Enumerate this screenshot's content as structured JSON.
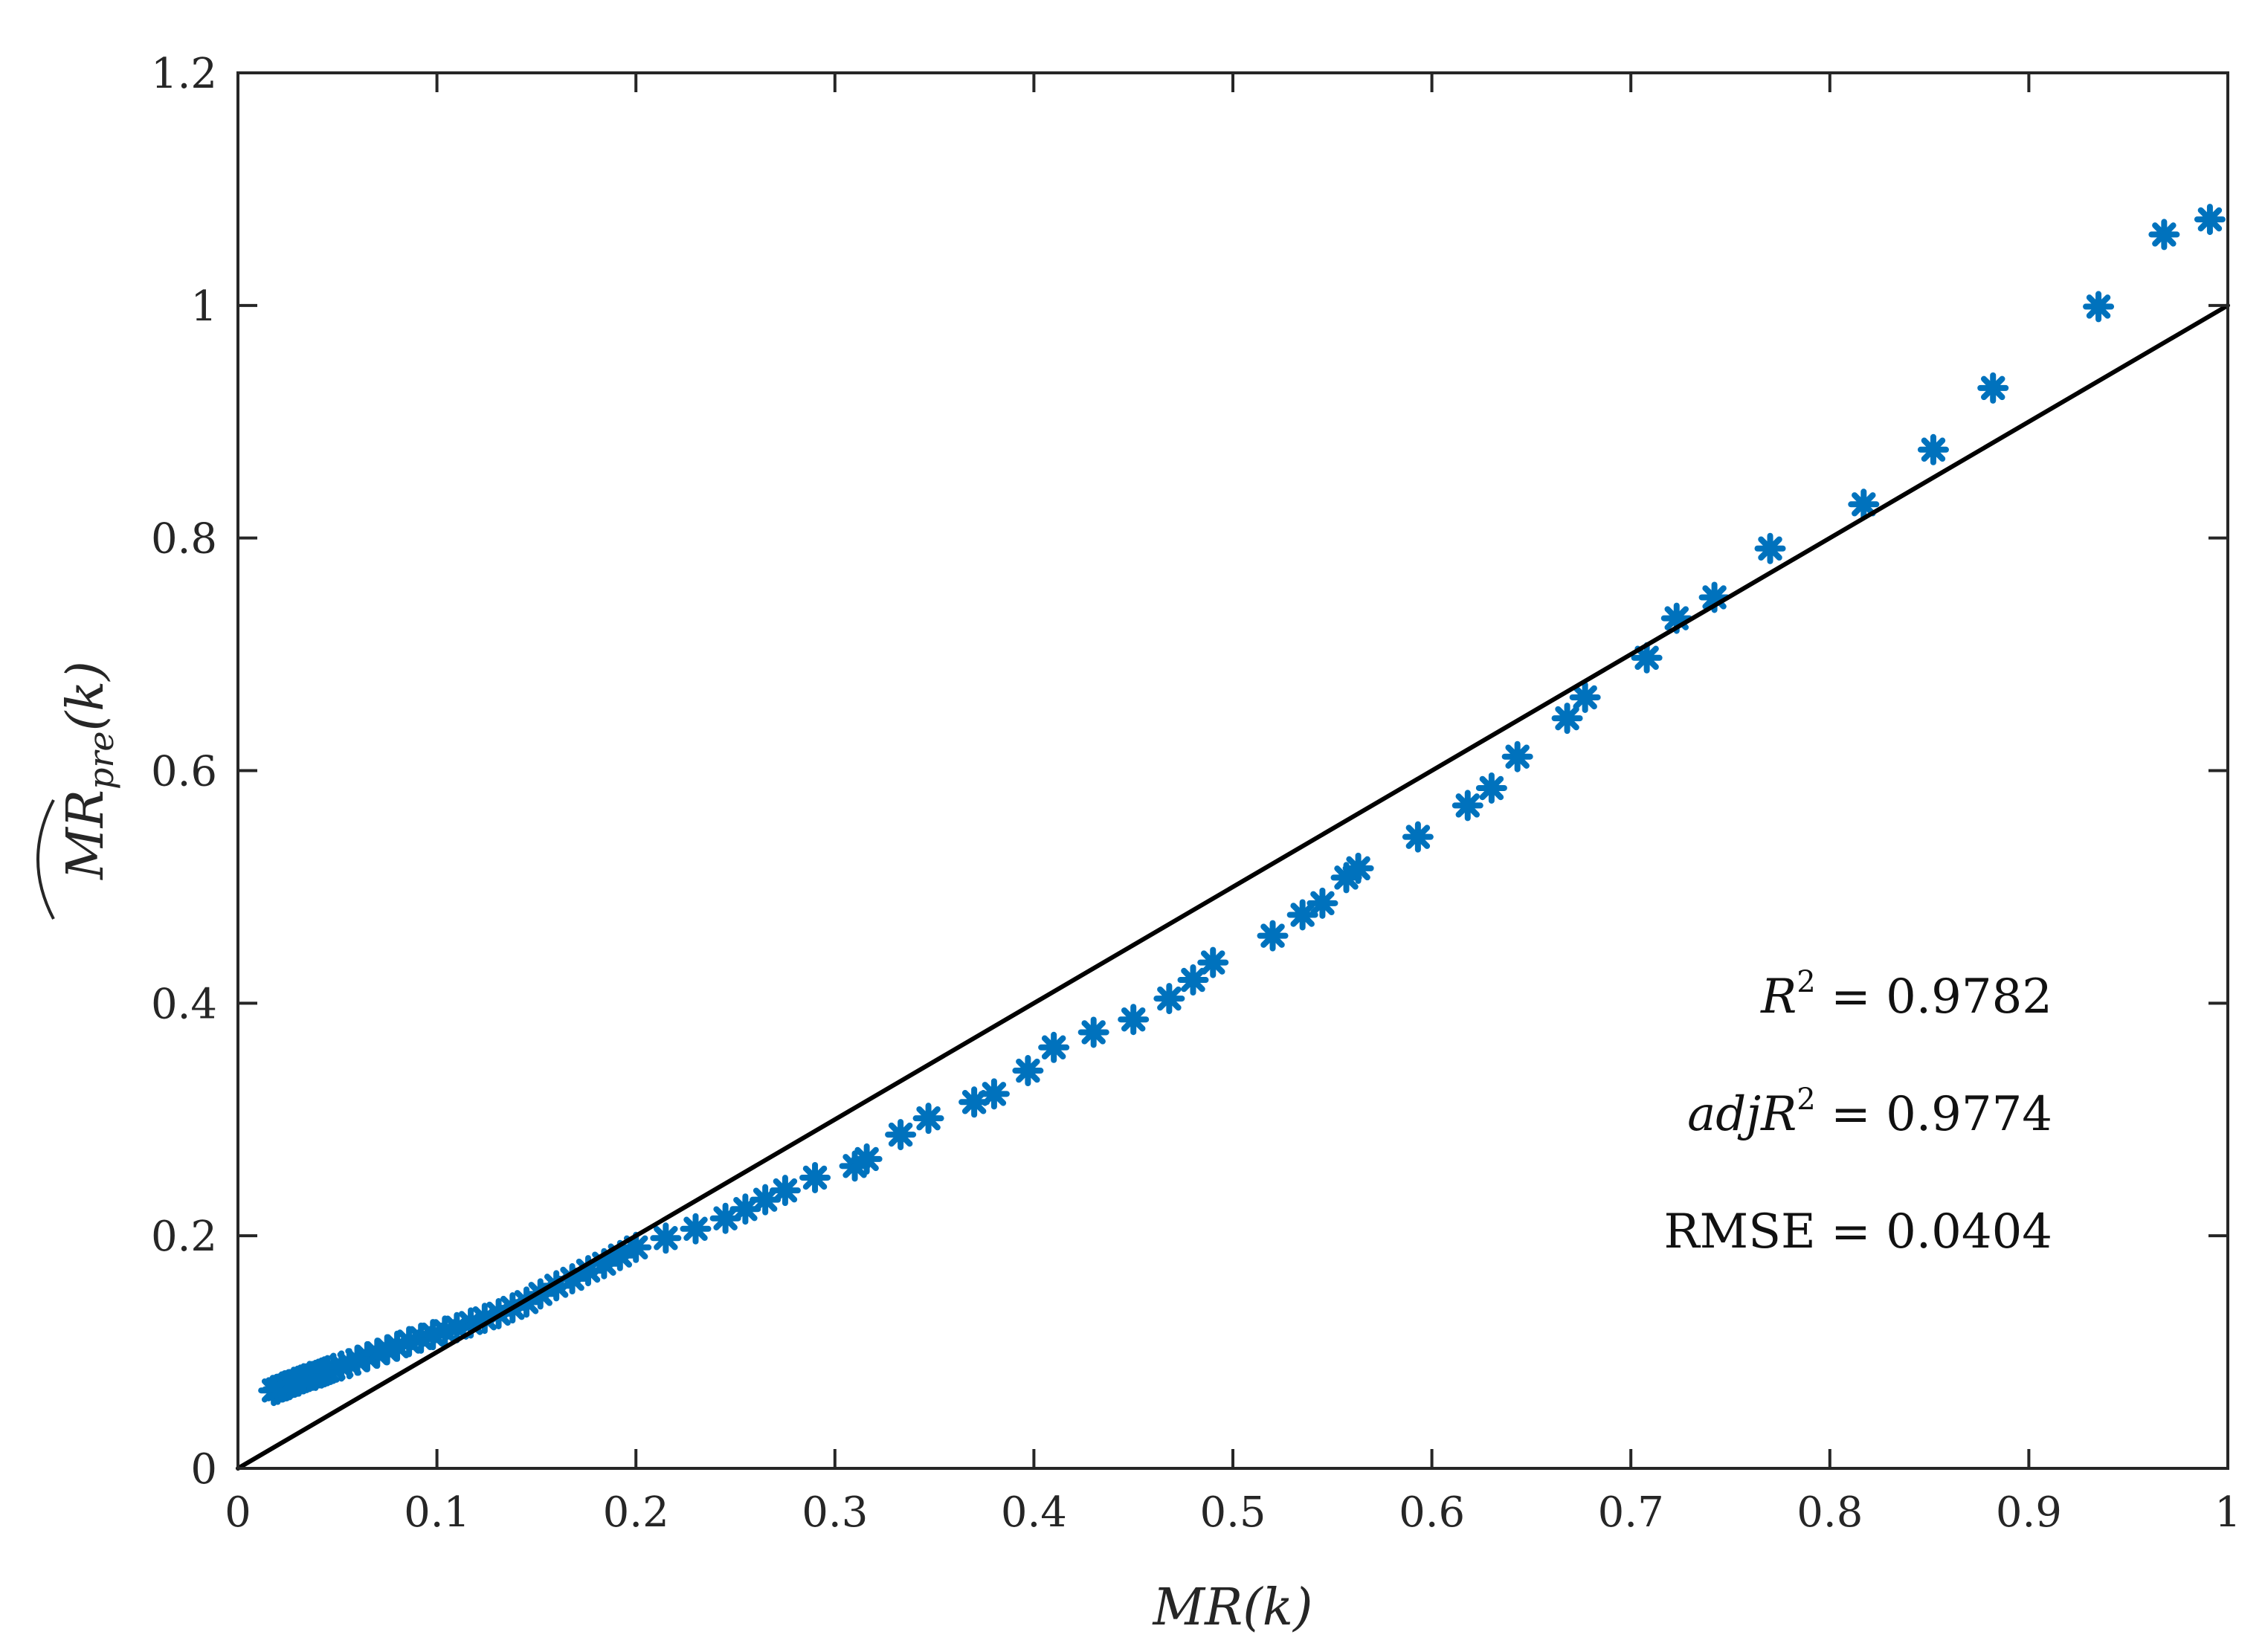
{
  "chart_data": {
    "type": "scatter",
    "xlabel": {
      "main": "MR",
      "arg": "(k)"
    },
    "ylabel": {
      "main": "MR",
      "sub": "pre",
      "arg": "(k)"
    },
    "xlim": [
      0,
      1
    ],
    "ylim": [
      0,
      1.2
    ],
    "xticks": [
      "0",
      "0.1",
      "0.2",
      "0.3",
      "0.4",
      "0.5",
      "0.6",
      "0.7",
      "0.8",
      "0.9",
      "1"
    ],
    "yticks": [
      "0",
      "0.2",
      "0.4",
      "0.6",
      "0.8",
      "1",
      "1.2"
    ],
    "grid": false,
    "marker_color": "#0072BD",
    "line_color": "#000000",
    "reference_line": {
      "x": [
        0,
        1
      ],
      "y": [
        0,
        1
      ]
    },
    "annotations": {
      "r2": {
        "symbol": "R",
        "sup": "2",
        "value": " = 0.9782"
      },
      "adj_r2": {
        "prefix": "adj",
        "symbol": "R",
        "sup": "2",
        "value": " = 0.9774"
      },
      "rmse": {
        "label": "RMSE",
        "value": " = 0.0404"
      }
    },
    "series": [
      {
        "marker": "asterisk",
        "x": [
          0.018,
          0.02,
          0.022,
          0.024,
          0.026,
          0.028,
          0.03,
          0.033,
          0.036,
          0.039,
          0.042,
          0.045,
          0.048,
          0.052,
          0.056,
          0.06,
          0.065,
          0.07,
          0.075,
          0.08,
          0.086,
          0.092,
          0.098,
          0.104,
          0.11,
          0.117,
          0.124,
          0.131,
          0.138,
          0.145,
          0.152,
          0.16,
          0.168,
          0.176,
          0.184,
          0.192,
          0.2,
          0.215,
          0.23,
          0.245,
          0.255,
          0.265,
          0.275,
          0.29,
          0.31,
          0.316,
          0.333,
          0.347,
          0.37,
          0.38,
          0.397,
          0.41,
          0.43,
          0.45,
          0.468,
          0.48,
          0.49,
          0.52,
          0.535,
          0.545,
          0.557,
          0.563,
          0.593,
          0.618,
          0.63,
          0.643,
          0.668,
          0.677,
          0.708,
          0.723,
          0.742,
          0.77,
          0.817,
          0.852,
          0.882,
          0.935,
          0.968,
          0.991
        ],
        "y": [
          0.067,
          0.068,
          0.07,
          0.071,
          0.072,
          0.074,
          0.075,
          0.077,
          0.079,
          0.08,
          0.082,
          0.084,
          0.086,
          0.088,
          0.09,
          0.093,
          0.096,
          0.099,
          0.102,
          0.105,
          0.109,
          0.112,
          0.115,
          0.118,
          0.121,
          0.125,
          0.129,
          0.133,
          0.138,
          0.143,
          0.15,
          0.157,
          0.163,
          0.17,
          0.176,
          0.183,
          0.19,
          0.198,
          0.206,
          0.215,
          0.223,
          0.231,
          0.239,
          0.25,
          0.26,
          0.266,
          0.287,
          0.301,
          0.315,
          0.322,
          0.342,
          0.362,
          0.375,
          0.386,
          0.404,
          0.42,
          0.435,
          0.458,
          0.476,
          0.486,
          0.508,
          0.516,
          0.543,
          0.57,
          0.585,
          0.612,
          0.645,
          0.663,
          0.697,
          0.731,
          0.749,
          0.791,
          0.829,
          0.876,
          0.929,
          0.999,
          1.061,
          1.074
        ]
      }
    ]
  }
}
